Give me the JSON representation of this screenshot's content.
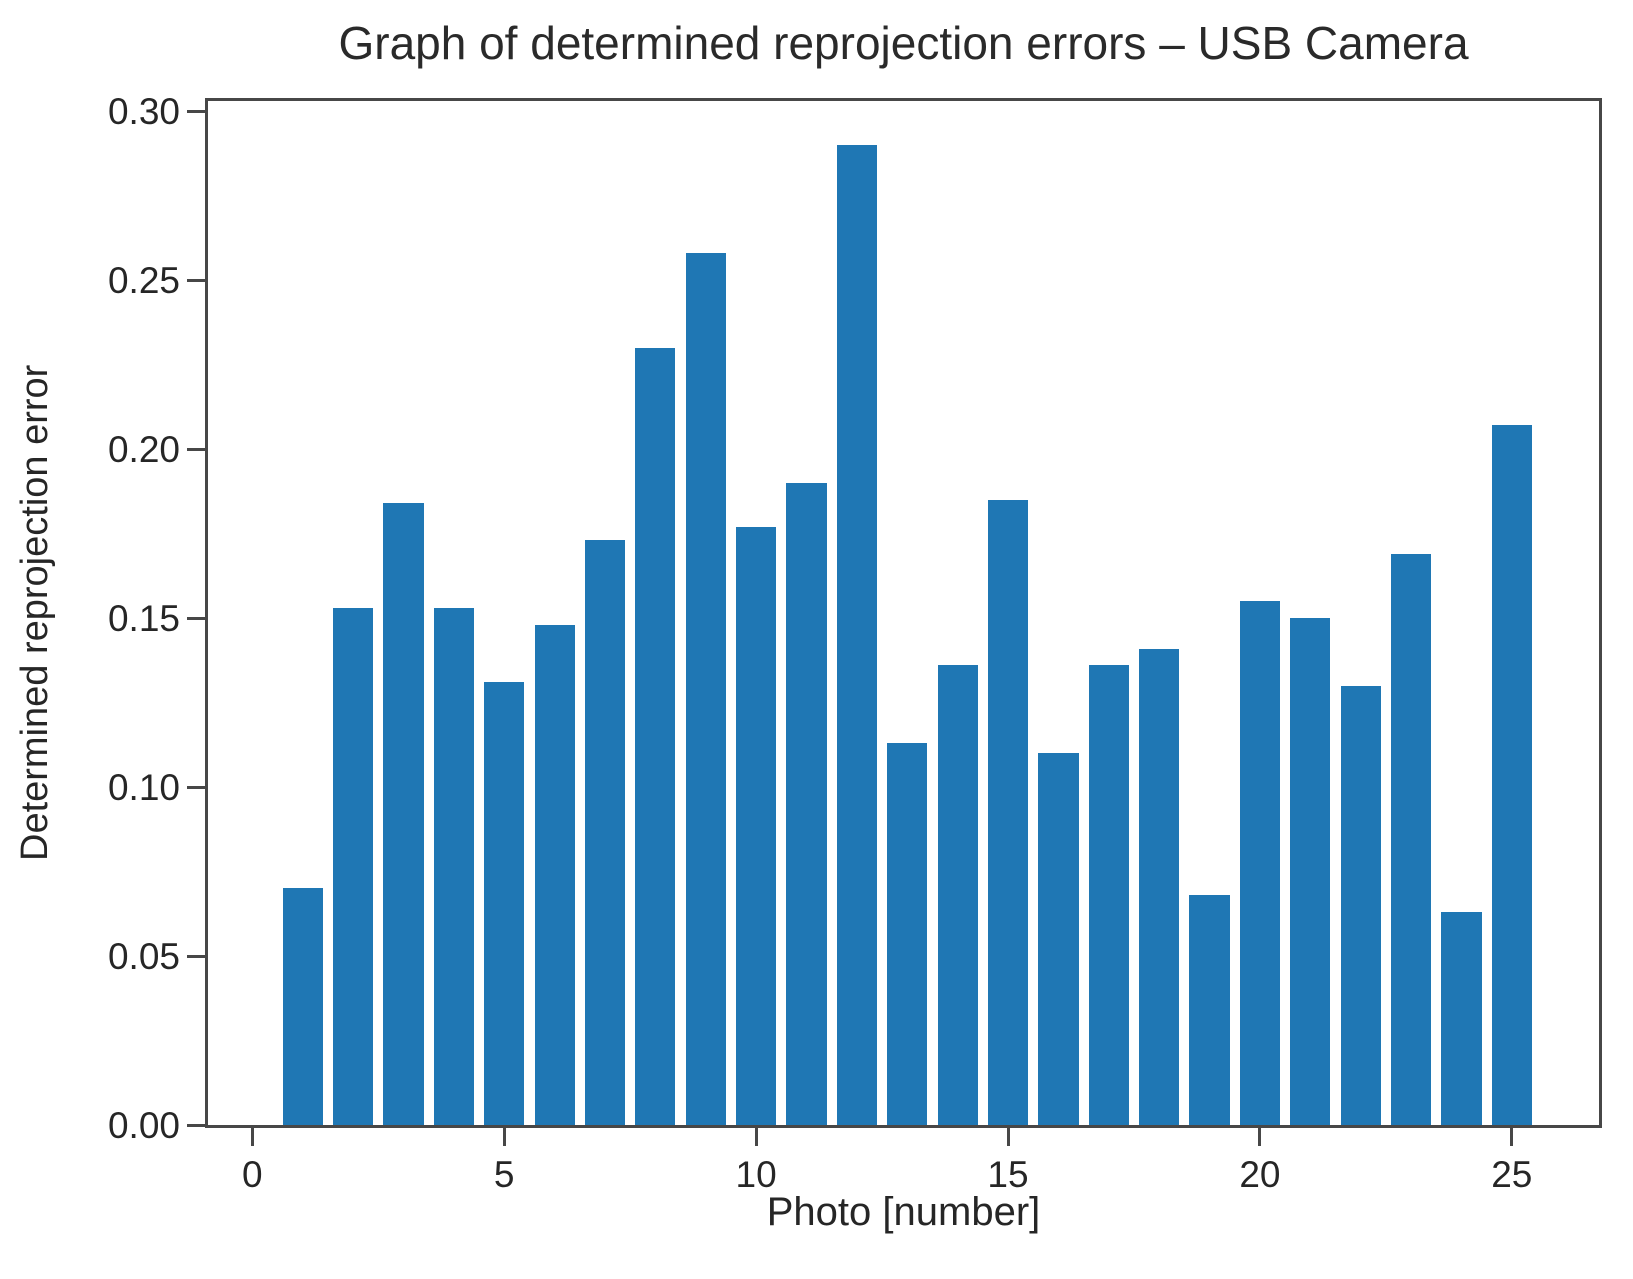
{
  "chart": {
    "title": "Graph of determined reprojection errors – USB Camera",
    "xlabel": "Photo [number]",
    "ylabel": "Determined reprojection error"
  },
  "chart_data": {
    "type": "bar",
    "title": "Graph of determined reprojection errors – USB Camera",
    "xlabel": "Photo [number]",
    "ylabel": "Determined reprojection error",
    "x": [
      1,
      2,
      3,
      4,
      5,
      6,
      7,
      8,
      9,
      10,
      11,
      12,
      13,
      14,
      15,
      16,
      17,
      18,
      19,
      20,
      21,
      22,
      23,
      24,
      25
    ],
    "values": [
      0.07,
      0.153,
      0.184,
      0.153,
      0.131,
      0.148,
      0.173,
      0.23,
      0.258,
      0.177,
      0.19,
      0.29,
      0.113,
      0.136,
      0.185,
      0.11,
      0.136,
      0.141,
      0.068,
      0.155,
      0.15,
      0.13,
      0.169,
      0.063,
      0.207
    ],
    "bar_width": 0.8,
    "bar_color": "#1f77b4",
    "xlim": [
      -0.88,
      26.73
    ],
    "ylim": [
      0,
      0.303
    ],
    "xticks": [
      {
        "value": 0,
        "label": "0"
      },
      {
        "value": 5,
        "label": "5"
      },
      {
        "value": 10,
        "label": "10"
      },
      {
        "value": 15,
        "label": "15"
      },
      {
        "value": 20,
        "label": "20"
      },
      {
        "value": 25,
        "label": "25"
      }
    ],
    "yticks": [
      {
        "value": 0.0,
        "label": "0.00"
      },
      {
        "value": 0.05,
        "label": "0.05"
      },
      {
        "value": 0.1,
        "label": "0.10"
      },
      {
        "value": 0.15,
        "label": "0.15"
      },
      {
        "value": 0.2,
        "label": "0.20"
      },
      {
        "value": 0.25,
        "label": "0.25"
      },
      {
        "value": 0.3,
        "label": "0.30"
      }
    ],
    "grid": false,
    "legend": null
  }
}
